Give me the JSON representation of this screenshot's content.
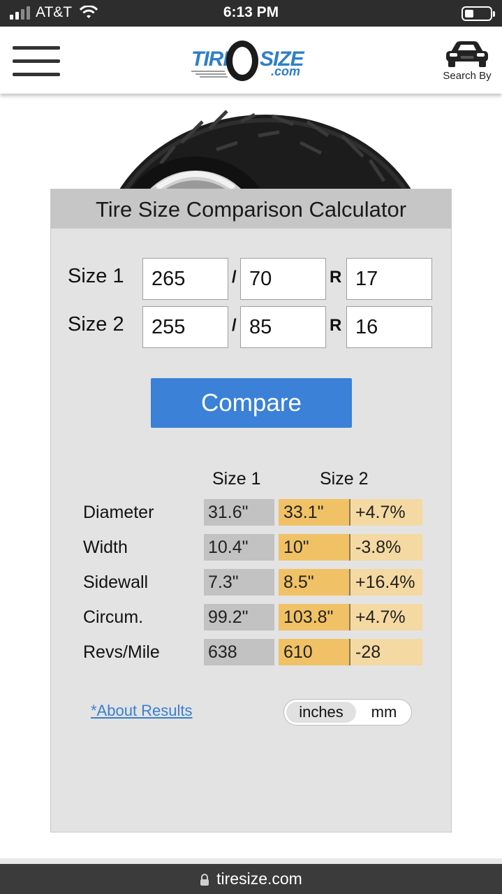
{
  "status_bar": {
    "carrier": "AT&T",
    "time": "6:13 PM"
  },
  "header": {
    "logo_tire": "TIRE",
    "logo_size": "SIZE",
    "logo_com": ".com",
    "search_by_label": "Search By"
  },
  "calculator": {
    "title": "Tire Size Comparison Calculator",
    "sizes": [
      {
        "label": "Size 1",
        "width": "265",
        "aspect": "70",
        "rim": "17"
      },
      {
        "label": "Size 2",
        "width": "255",
        "aspect": "85",
        "rim": "16"
      }
    ],
    "separator_slash": "/",
    "separator_r": "R",
    "compare_label": "Compare",
    "column_headers": {
      "size1": "Size 1",
      "size2": "Size 2"
    },
    "results": [
      {
        "label": "Diameter",
        "size1": "31.6\"",
        "size2": "33.1\"",
        "diff": "+4.7%"
      },
      {
        "label": "Width",
        "size1": "10.4\"",
        "size2": "10\"",
        "diff": "-3.8%"
      },
      {
        "label": "Sidewall",
        "size1": "7.3\"",
        "size2": "8.5\"",
        "diff": "+16.4%"
      },
      {
        "label": "Circum.",
        "size1": "99.2\"",
        "size2": "103.8\"",
        "diff": "+4.7%"
      },
      {
        "label": "Revs/Mile",
        "size1": "638",
        "size2": "610",
        "diff": "-28"
      }
    ],
    "about_link": "*About Results",
    "units": {
      "inches": "inches",
      "mm": "mm",
      "selected": "inches"
    }
  },
  "url_bar": {
    "domain": "tiresize.com"
  },
  "colors": {
    "accent_blue": "#3a81d7",
    "size2_cell": "#f0c265",
    "diff_cell": "#f4d9a2",
    "size1_cell": "#c2c2c2"
  }
}
